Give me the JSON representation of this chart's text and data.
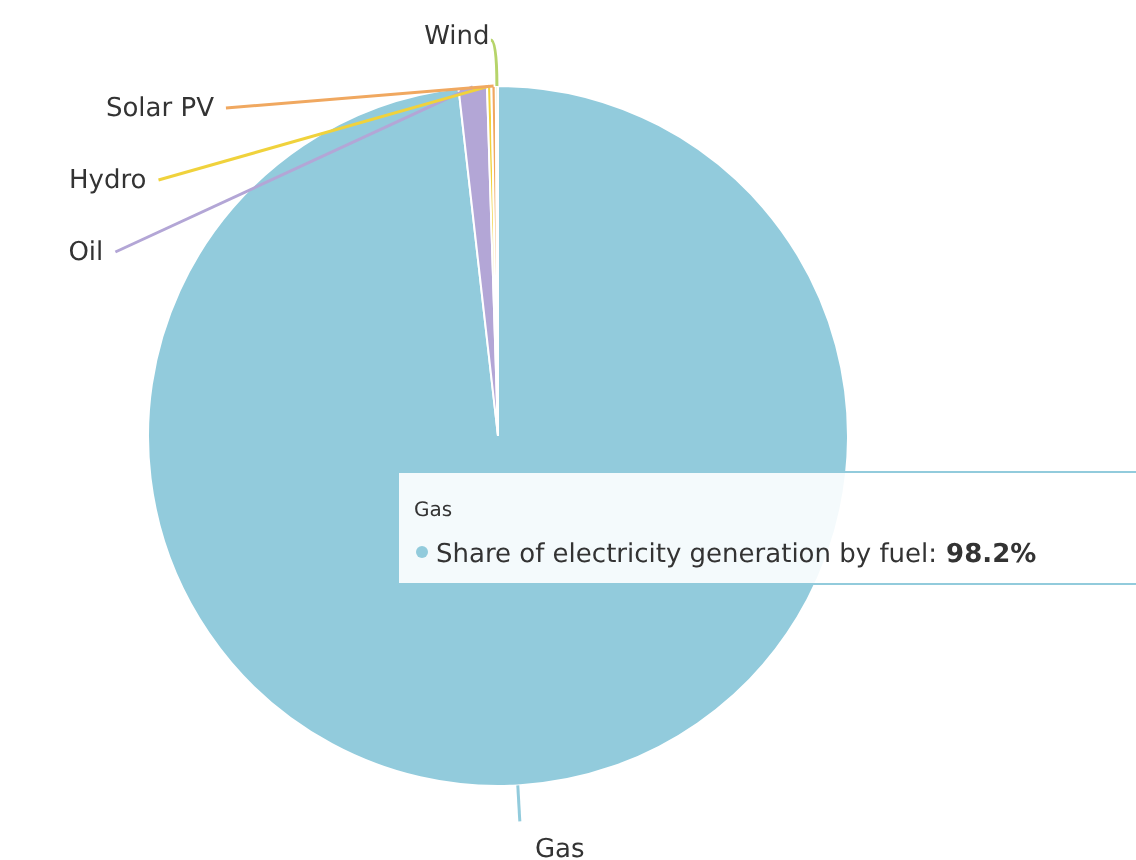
{
  "chart_data": {
    "type": "pie",
    "categories": [
      "Gas",
      "Oil",
      "Hydro",
      "Solar PV",
      "Wind"
    ],
    "values": [
      98.2,
      1.3,
      0.2,
      0.2,
      0.1
    ],
    "colors": [
      "#92cbdc",
      "#b3a6d6",
      "#f0d23c",
      "#f0a860",
      "#b6d46a"
    ],
    "annotations": [
      "Gas",
      "Share of electricity generation by fuel: 98.2%"
    ]
  }
}
